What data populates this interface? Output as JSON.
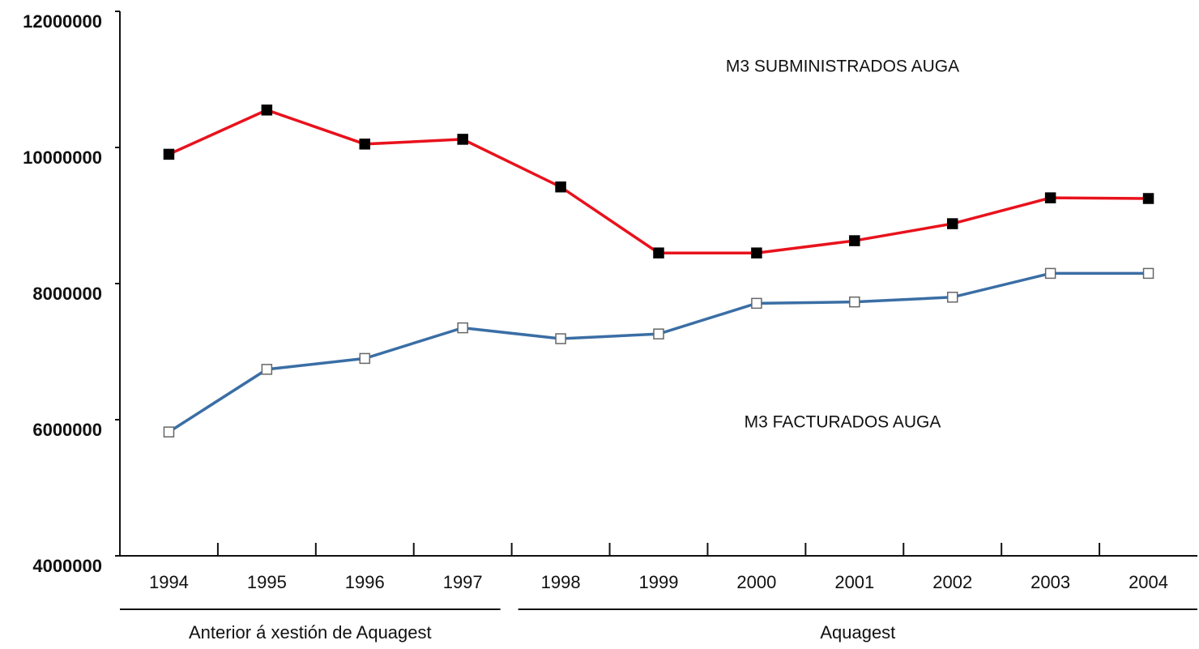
{
  "chart_data": {
    "type": "line",
    "categories": [
      "1994",
      "1995",
      "1996",
      "1997",
      "1998",
      "1999",
      "2000",
      "2001",
      "2002",
      "2003",
      "2004"
    ],
    "series": [
      {
        "name": "M3 SUBMINISTRADOS AUGA",
        "color": "#e8121c",
        "marker": "filled",
        "values": [
          9900000,
          10550000,
          10050000,
          10120000,
          9420000,
          8450000,
          8450000,
          8630000,
          8880000,
          9260000,
          9250000
        ]
      },
      {
        "name": "M3 FACTURADOS AUGA",
        "color": "#3a6ea5",
        "marker": "hollow",
        "values": [
          5820000,
          6740000,
          6900000,
          7350000,
          7190000,
          7260000,
          7710000,
          7730000,
          7800000,
          8150000,
          8150000
        ]
      }
    ],
    "ylim": [
      4000000,
      12000000
    ],
    "yticks": [
      4000000,
      6000000,
      8000000,
      10000000,
      12000000
    ],
    "groups": [
      {
        "label": "Anterior á xestión de Aquagest",
        "span": [
          "1994",
          "1997"
        ]
      },
      {
        "label": "Aquagest",
        "span": [
          "1998",
          "2004"
        ]
      }
    ],
    "grid": false
  }
}
